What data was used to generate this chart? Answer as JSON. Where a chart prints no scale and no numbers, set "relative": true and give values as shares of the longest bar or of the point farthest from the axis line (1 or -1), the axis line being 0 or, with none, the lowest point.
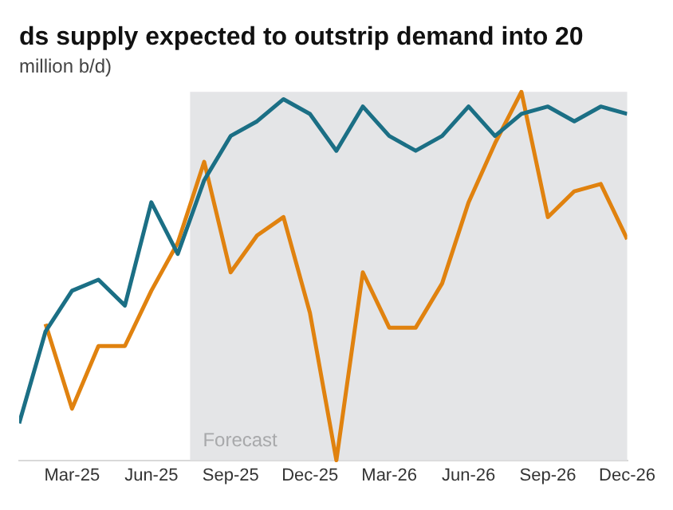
{
  "chart_data": {
    "type": "line",
    "title": "ds supply expected to outstrip demand into 20",
    "subtitle": "million b/d)",
    "relative": true,
    "legend": false,
    "x": [
      "2025-01",
      "2025-02",
      "2025-03",
      "2025-04",
      "2025-05",
      "2025-06",
      "2025-07",
      "2025-08",
      "2025-09",
      "2025-10",
      "2025-11",
      "2025-12",
      "2026-01",
      "2026-02",
      "2026-03",
      "2026-04",
      "2026-05",
      "2026-06",
      "2026-07",
      "2026-08",
      "2026-09",
      "2026-10",
      "2026-11",
      "2026-12"
    ],
    "xlim": [
      "2025-01",
      "2026-12"
    ],
    "xticks": [
      {
        "value": "2025-03",
        "label": "Mar-25"
      },
      {
        "value": "2025-06",
        "label": "Jun-25"
      },
      {
        "value": "2025-09",
        "label": "Sep-25"
      },
      {
        "value": "2025-12",
        "label": "Dec-25"
      },
      {
        "value": "2026-03",
        "label": "Mar-26"
      },
      {
        "value": "2026-06",
        "label": "Jun-26"
      },
      {
        "value": "2026-09",
        "label": "Sep-26"
      },
      {
        "value": "2026-12",
        "label": "Dec-26"
      }
    ],
    "series": [
      {
        "color": "#1b6f85",
        "values": [
          0.1,
          0.35,
          0.46,
          0.49,
          0.42,
          0.7,
          0.56,
          0.76,
          0.88,
          0.92,
          0.98,
          0.94,
          0.84,
          0.96,
          0.88,
          0.84,
          0.88,
          0.96,
          0.88,
          0.94,
          0.96,
          0.92,
          0.96,
          0.94
        ]
      },
      {
        "color": "#e0820f",
        "values": [
          null,
          0.37,
          0.14,
          0.31,
          0.31,
          0.46,
          0.59,
          0.81,
          0.51,
          0.61,
          0.66,
          0.4,
          0,
          0.51,
          0.36,
          0.36,
          0.48,
          0.7,
          0.86,
          1,
          0.66,
          0.73,
          0.75,
          0.6
        ]
      }
    ],
    "bands": [
      {
        "axis": "x",
        "from": "2025-07-15",
        "to": "2026-12",
        "label": "Forecast",
        "color": "#e4e5e7"
      }
    ]
  }
}
